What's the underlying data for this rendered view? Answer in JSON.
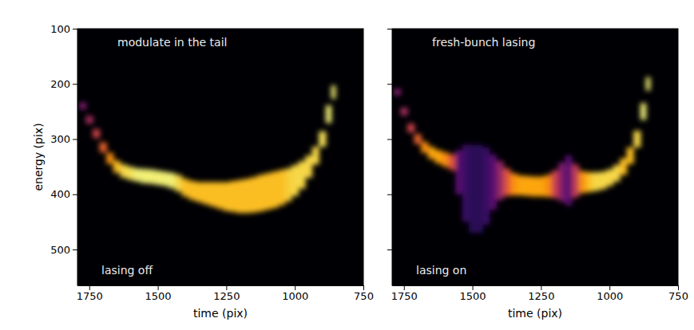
{
  "chart_data": [
    {
      "type": "band",
      "title": "modulate in the tail",
      "annotation": "lasing off",
      "xlabel": "time (pix)",
      "ylabel": "energy (pix)",
      "xlim": [
        1793,
        750
      ],
      "ylim": [
        100,
        565
      ],
      "xticks": [
        1750,
        1500,
        1250,
        1000,
        750
      ],
      "yticks": [
        100,
        200,
        300,
        400,
        500
      ],
      "x": [
        1775,
        1750,
        1725,
        1700,
        1675,
        1650,
        1625,
        1600,
        1575,
        1550,
        1525,
        1500,
        1475,
        1450,
        1425,
        1400,
        1375,
        1350,
        1325,
        1300,
        1275,
        1250,
        1225,
        1200,
        1175,
        1150,
        1125,
        1100,
        1075,
        1050,
        1025,
        1000,
        975,
        950,
        925,
        900,
        875,
        860
      ],
      "center": [
        240,
        265,
        290,
        315,
        335,
        350,
        358,
        362,
        365,
        367,
        368,
        370,
        372,
        375,
        380,
        388,
        393,
        396,
        398,
        400,
        402,
        404,
        404,
        404,
        403,
        401,
        398,
        395,
        392,
        388,
        383,
        375,
        365,
        350,
        330,
        300,
        255,
        215
      ],
      "half_width": [
        6,
        7,
        8,
        9,
        10,
        11,
        12,
        12,
        12,
        13,
        13,
        13,
        13,
        14,
        15,
        16,
        17,
        18,
        20,
        22,
        24,
        26,
        28,
        30,
        31,
        32,
        33,
        33,
        33,
        32,
        30,
        28,
        25,
        20,
        16,
        14,
        16,
        12
      ],
      "intensity": [
        0.35,
        0.45,
        0.55,
        0.65,
        0.75,
        0.85,
        0.9,
        0.92,
        0.95,
        0.95,
        0.95,
        0.95,
        0.95,
        0.95,
        0.9,
        0.85,
        0.85,
        0.85,
        0.85,
        0.85,
        0.85,
        0.85,
        0.85,
        0.85,
        0.85,
        0.85,
        0.85,
        0.85,
        0.85,
        0.85,
        0.88,
        0.9,
        0.9,
        0.9,
        0.9,
        0.92,
        0.95,
        0.95
      ]
    },
    {
      "type": "band",
      "title": "fresh-bunch lasing",
      "annotation": "lasing on",
      "xlabel": "time (pix)",
      "tick_labels": "x",
      "xlim": [
        1793,
        750
      ],
      "ylim": [
        100,
        565
      ],
      "xticks": [
        1750,
        1500,
        1250,
        1000,
        750
      ],
      "yticks": [
        100,
        200,
        300,
        400,
        500
      ],
      "x": [
        1775,
        1750,
        1725,
        1700,
        1675,
        1650,
        1625,
        1600,
        1575,
        1550,
        1525,
        1500,
        1475,
        1450,
        1425,
        1400,
        1375,
        1350,
        1325,
        1300,
        1275,
        1250,
        1225,
        1200,
        1175,
        1150,
        1125,
        1100,
        1075,
        1050,
        1025,
        1000,
        975,
        950,
        925,
        900,
        875,
        860
      ],
      "center": [
        215,
        250,
        280,
        300,
        315,
        325,
        332,
        337,
        342,
        360,
        380,
        390,
        390,
        385,
        378,
        375,
        378,
        382,
        384,
        385,
        386,
        386,
        385,
        382,
        378,
        375,
        376,
        378,
        378,
        377,
        375,
        370,
        362,
        350,
        330,
        300,
        250,
        200
      ],
      "half_width": [
        6,
        7,
        8,
        9,
        10,
        11,
        12,
        13,
        14,
        40,
        70,
        80,
        80,
        70,
        50,
        35,
        25,
        20,
        18,
        18,
        18,
        18,
        20,
        25,
        35,
        45,
        30,
        20,
        18,
        17,
        16,
        15,
        15,
        15,
        15,
        15,
        15,
        12
      ],
      "intensity": [
        0.35,
        0.45,
        0.55,
        0.65,
        0.75,
        0.8,
        0.8,
        0.75,
        0.6,
        0.25,
        0.18,
        0.15,
        0.15,
        0.18,
        0.25,
        0.4,
        0.6,
        0.75,
        0.8,
        0.8,
        0.8,
        0.8,
        0.75,
        0.55,
        0.35,
        0.25,
        0.5,
        0.75,
        0.85,
        0.9,
        0.9,
        0.9,
        0.9,
        0.85,
        0.85,
        0.9,
        0.95,
        0.95
      ]
    }
  ]
}
